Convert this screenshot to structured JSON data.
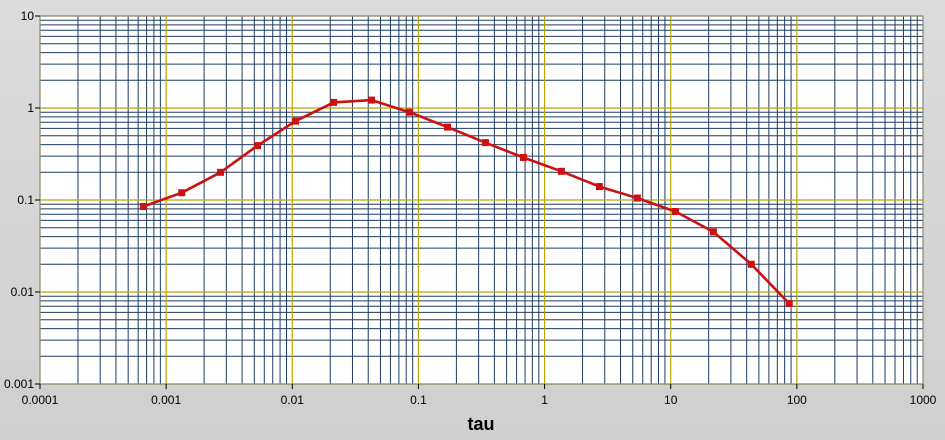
{
  "chart_data": {
    "type": "line",
    "title": "",
    "xlabel": "tau",
    "ylabel": "",
    "x_scale": "log",
    "y_scale": "log",
    "xlim": [
      0.0001,
      1000
    ],
    "ylim": [
      0.001,
      10
    ],
    "grid": true,
    "x_ticks": [
      "0.0001",
      "0.001",
      "0.01",
      "0.1",
      "1",
      "10",
      "100",
      "1000"
    ],
    "y_ticks": [
      "0.001",
      "0.01",
      "0.1",
      "1",
      "10"
    ],
    "series": [
      {
        "color": "#cc1111",
        "x": [
          0.00066,
          0.00133,
          0.0027,
          0.0053,
          0.0106,
          0.0213,
          0.0425,
          0.085,
          0.17,
          0.34,
          0.68,
          1.36,
          2.72,
          5.44,
          10.9,
          21.8,
          43.5,
          87
        ],
        "y": [
          0.085,
          0.12,
          0.2,
          0.39,
          0.72,
          1.15,
          1.22,
          0.9,
          0.62,
          0.42,
          0.29,
          0.205,
          0.14,
          0.105,
          0.075,
          0.045,
          0.02,
          0.0075
        ]
      }
    ]
  },
  "colors": {
    "plot_bg": "#ffffff",
    "major_grid": "#b7a800",
    "minor_grid": "#1f3d63",
    "frame": "#d6d6d6"
  }
}
